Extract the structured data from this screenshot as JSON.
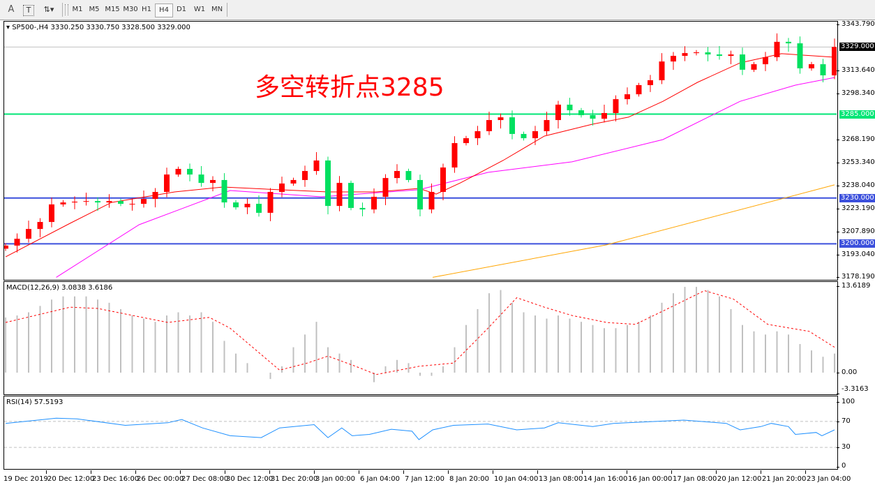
{
  "toolbar": {
    "tools": [
      {
        "label": "A",
        "icon": "text-label-icon"
      },
      {
        "label": "T",
        "icon": "text-box-icon"
      },
      {
        "label": "",
        "icon": "arrows-dropdown-icon"
      }
    ],
    "timeframes": [
      "M1",
      "M5",
      "M15",
      "M30",
      "H1",
      "H4",
      "D1",
      "W1",
      "MN"
    ],
    "active_timeframe": "H4"
  },
  "chart": {
    "header": "SP500-,H4  3330.250 3330.750 3328.500 3329.000",
    "annotation": "多空转折点3285",
    "colors": {
      "up": "#ff0000",
      "down": "#00e060",
      "ma_fast": "#ff0000",
      "ma_mid": "#ff00ff",
      "ma_slow": "#ffa500",
      "level_3285": "#00e676",
      "level_blue": "#3c50dc",
      "macd_hist": "#c0c0c0",
      "macd_signal": "#ff0000",
      "rsi": "#1e90ff"
    }
  },
  "chart_data": [
    {
      "type": "candlestick",
      "symbol": "SP500-",
      "timeframe": "H4",
      "ylim": [
        3178.19,
        3343.79
      ],
      "price_ticks": [
        "3343.790",
        "3313.640",
        "3298.340",
        "3268.190",
        "3253.340",
        "3238.040",
        "3223.190",
        "3207.890",
        "3193.040",
        "3178.190"
      ],
      "current_price": "3329.000",
      "levels": [
        {
          "label": "3285.000",
          "value": 3285,
          "color": "#00e676"
        },
        {
          "label": "3230.000",
          "value": 3230,
          "color": "#3c50dc"
        },
        {
          "label": "3200.000",
          "value": 3200,
          "color": "#3c50dc"
        }
      ],
      "closes": [
        3198.8,
        3203.3,
        3209.7,
        3214.3,
        3225.8,
        3227.1,
        3227.6,
        3228.0,
        3227.1,
        3228.0,
        3226.2,
        3226.2,
        3229.4,
        3234.0,
        3245.4,
        3249.1,
        3245.4,
        3239.9,
        3241.8,
        3227.1,
        3223.9,
        3226.2,
        3220.3,
        3234.0,
        3239.5,
        3241.8,
        3247.7,
        3254.6,
        3224.8,
        3239.9,
        3223.5,
        3222.5,
        3230.8,
        3243.1,
        3247.7,
        3241.8,
        3222.5,
        3234.0,
        3250.0,
        3266.0,
        3269.2,
        3273.8,
        3281.1,
        3282.9,
        3272.0,
        3269.2,
        3273.8,
        3281.1,
        3291.2,
        3287.5,
        3284.3,
        3282.0,
        3285.7,
        3294.8,
        3298.0,
        3304.0,
        3307.2,
        3319.5,
        3323.2,
        3325.0,
        3325.5,
        3324.1,
        3323.2,
        3324.1,
        3314.1,
        3317.7,
        3322.3,
        3332.4,
        3331.4,
        3315.0,
        3317.7,
        3310.4,
        3329.0
      ],
      "ma_fast": [
        [
          0,
          3191.4
        ],
        [
          5.6,
          3213.4
        ],
        [
          9.2,
          3227.1
        ],
        [
          14.7,
          3234
        ],
        [
          18.9,
          3237.2
        ],
        [
          23.8,
          3235.4
        ],
        [
          28,
          3234
        ],
        [
          32.2,
          3234
        ],
        [
          35.9,
          3236.3
        ],
        [
          37.4,
          3232.6
        ],
        [
          39.5,
          3239.9
        ],
        [
          43.2,
          3254.6
        ],
        [
          46.8,
          3270.6
        ],
        [
          51,
          3278.4
        ],
        [
          54.1,
          3283
        ],
        [
          57.1,
          3293.4
        ],
        [
          60.1,
          3305.8
        ],
        [
          63.8,
          3318.6
        ],
        [
          67.4,
          3324.6
        ],
        [
          72,
          3322.3
        ]
      ],
      "ma_mid": [
        [
          4.4,
          3178
        ],
        [
          11.6,
          3212.5
        ],
        [
          19.5,
          3234.9
        ],
        [
          27.4,
          3230.8
        ],
        [
          35.9,
          3235.4
        ],
        [
          41.9,
          3246.8
        ],
        [
          49.2,
          3253.7
        ],
        [
          57.1,
          3268.3
        ],
        [
          63.8,
          3293.4
        ],
        [
          68.6,
          3304
        ],
        [
          72,
          3309
        ]
      ],
      "ma_slow": [
        [
          37.1,
          3178
        ],
        [
          52.2,
          3199.3
        ],
        [
          72,
          3238.6
        ]
      ],
      "x_labels": [
        "19 Dec 2019",
        "20 Dec 12:00",
        "23 Dec 16:00",
        "26 Dec 00:00",
        "27 Dec 08:00",
        "30 Dec 12:00",
        "31 Dec 20:00",
        "3 Jan 00:00",
        "6 Jan 04:00",
        "7 Jan 12:00",
        "8 Jan 20:00",
        "10 Jan 04:00",
        "13 Jan 08:00",
        "14 Jan 16:00",
        "16 Jan 00:00",
        "17 Jan 08:00",
        "20 Jan 12:00",
        "21 Jan 20:00",
        "23 Jan 04:00"
      ]
    },
    {
      "type": "bar",
      "title": "MACD(12,26,9) 3.0838 3.6186",
      "ylim": [
        -3.3163,
        13.6189
      ],
      "y_ticks": [
        "13.6189",
        "0.00",
        "-3.3163"
      ],
      "histogram": [
        8.7,
        9,
        9.5,
        10.5,
        11.5,
        12,
        12,
        12,
        11.5,
        11,
        10,
        9,
        8.5,
        8,
        9,
        9.5,
        9,
        9.5,
        8,
        5,
        3,
        1.5,
        0,
        -1,
        1,
        4,
        6,
        8,
        4,
        3,
        2,
        0,
        -1.5,
        1,
        2,
        1.5,
        -0.5,
        -0.5,
        1,
        4,
        7.5,
        10,
        12.5,
        13,
        11,
        9.5,
        9,
        8.5,
        9,
        8.5,
        8,
        7.5,
        7,
        7,
        7.5,
        8,
        9,
        11,
        12.5,
        13.5,
        13.5,
        13,
        12,
        10,
        7.5,
        6.5,
        6,
        6.5,
        6,
        4.5,
        3.5,
        2.5,
        3
      ],
      "signal": [
        [
          0,
          7.9
        ],
        [
          5.6,
          10.3
        ],
        [
          8,
          10.1
        ],
        [
          11.6,
          8.8
        ],
        [
          14.1,
          7.9
        ],
        [
          17.7,
          8.7
        ],
        [
          19.5,
          7
        ],
        [
          23.8,
          0.4
        ],
        [
          26.2,
          1.5
        ],
        [
          28,
          2.6
        ],
        [
          30.4,
          1
        ],
        [
          32.2,
          -0.3
        ],
        [
          35.9,
          1
        ],
        [
          38.9,
          1.5
        ],
        [
          41.9,
          7
        ],
        [
          44.4,
          11.8
        ],
        [
          46.8,
          10.3
        ],
        [
          49.2,
          9
        ],
        [
          52.2,
          7.9
        ],
        [
          54.7,
          7.6
        ],
        [
          57.1,
          9.7
        ],
        [
          60.7,
          12.9
        ],
        [
          63.2,
          11.6
        ],
        [
          66.2,
          7.6
        ],
        [
          69.8,
          6.5
        ],
        [
          72,
          4
        ]
      ]
    },
    {
      "type": "line",
      "title": "RSI(14) 57.5193",
      "ylim": [
        0,
        100
      ],
      "y_ticks": [
        "100",
        "70",
        "30",
        "0"
      ],
      "levels": [
        70,
        30
      ],
      "values": [
        [
          0,
          67
        ],
        [
          4.4,
          75
        ],
        [
          6.2,
          74
        ],
        [
          10.4,
          64
        ],
        [
          14.1,
          68
        ],
        [
          15.3,
          73
        ],
        [
          17.1,
          60
        ],
        [
          19.5,
          48
        ],
        [
          22.2,
          45
        ],
        [
          23.8,
          60
        ],
        [
          26.8,
          65
        ],
        [
          28,
          45
        ],
        [
          29.2,
          60
        ],
        [
          30.1,
          48
        ],
        [
          31.6,
          50
        ],
        [
          33.5,
          58
        ],
        [
          35.3,
          55
        ],
        [
          35.9,
          42
        ],
        [
          37.1,
          57
        ],
        [
          38.9,
          64
        ],
        [
          41.9,
          66
        ],
        [
          44.4,
          57
        ],
        [
          46.8,
          60
        ],
        [
          48,
          68
        ],
        [
          51,
          62
        ],
        [
          52.8,
          67
        ],
        [
          56.5,
          70
        ],
        [
          58.9,
          72
        ],
        [
          62.6,
          67
        ],
        [
          63.8,
          57
        ],
        [
          65.6,
          62
        ],
        [
          66.5,
          67
        ],
        [
          68,
          62
        ],
        [
          68.6,
          50
        ],
        [
          70.4,
          53
        ],
        [
          70.9,
          48
        ],
        [
          72,
          57
        ]
      ]
    }
  ]
}
